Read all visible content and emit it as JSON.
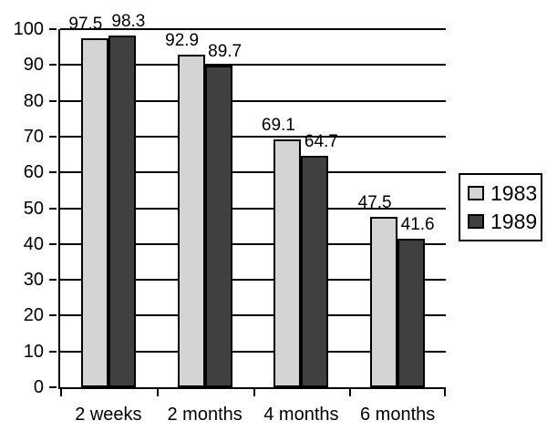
{
  "chart_data": {
    "type": "bar",
    "title": "",
    "xlabel": "",
    "ylabel": "",
    "categories": [
      "2 weeks",
      "2 months",
      "4 months",
      "6 months"
    ],
    "series": [
      {
        "name": "1983",
        "color": "#d4d4d4",
        "values": [
          97.5,
          92.9,
          69.1,
          47.5
        ]
      },
      {
        "name": "1989",
        "color": "#404040",
        "values": [
          98.3,
          89.7,
          64.7,
          41.6
        ]
      }
    ],
    "data_labels": [
      [
        "97.5",
        "92.9",
        "69.1",
        "47.5"
      ],
      [
        "98.3",
        "89.7",
        "64.7",
        "41.6"
      ]
    ],
    "ylim": [
      0,
      100
    ],
    "yticks": [
      0,
      10,
      20,
      30,
      40,
      50,
      60,
      70,
      80,
      90,
      100
    ],
    "grid": true,
    "legend_position": "right",
    "legend_items": [
      "1983",
      "1989"
    ],
    "colors": {
      "background": "#ffffff",
      "axis": "#000000",
      "gridline": "#000000",
      "text": "#000000",
      "bar_border": "#000000"
    }
  }
}
